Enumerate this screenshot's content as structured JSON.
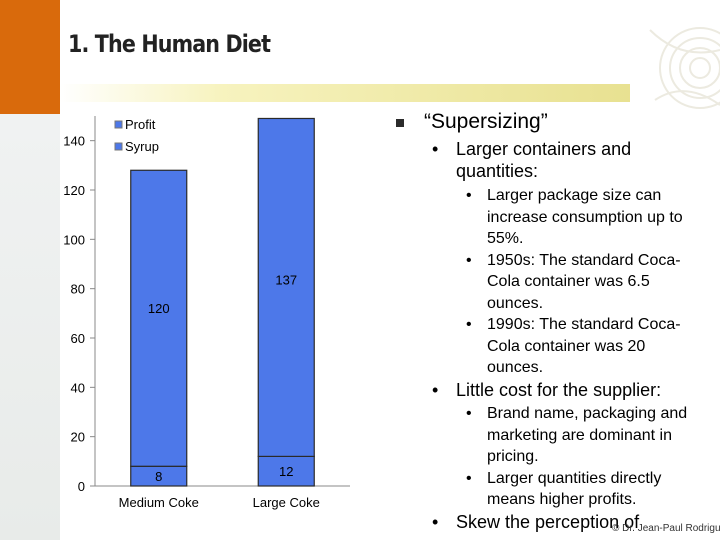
{
  "slide": {
    "title": "1. The Human Diet",
    "copyright": "© Dr. Jean-Paul Rodrigue"
  },
  "content": {
    "heading": "“Supersizing”",
    "bullet_glyph": "•",
    "sections": [
      {
        "label": "Larger containers and quantities:",
        "items": [
          "Larger package size can increase consumption up to 55%.",
          "1950s: The standard Coca-Cola container was 6.5 ounces.",
          "1990s: The standard Coca-Cola container was 20 ounces."
        ]
      },
      {
        "label": "Little cost for the supplier:",
        "items": [
          "Brand name, packaging and marketing are dominant in pricing.",
          "Larger quantities directly means higher profits."
        ]
      },
      {
        "label": "Skew the perception of",
        "items": []
      }
    ]
  },
  "chart_data": {
    "type": "bar",
    "stacked": true,
    "categories": [
      "Medium Coke",
      "Large Coke"
    ],
    "series": [
      {
        "name": "Syrup",
        "values": [
          8,
          12
        ],
        "color": "#4d78e9"
      },
      {
        "name": "Profit",
        "values": [
          120,
          137
        ],
        "color": "#4d78e9"
      }
    ],
    "legend": [
      "Profit",
      "Syrup"
    ],
    "yticks": [
      0,
      20,
      40,
      60,
      80,
      100,
      120,
      140
    ],
    "ylim": [
      0,
      150
    ],
    "title": "",
    "xlabel": "",
    "ylabel": ""
  }
}
